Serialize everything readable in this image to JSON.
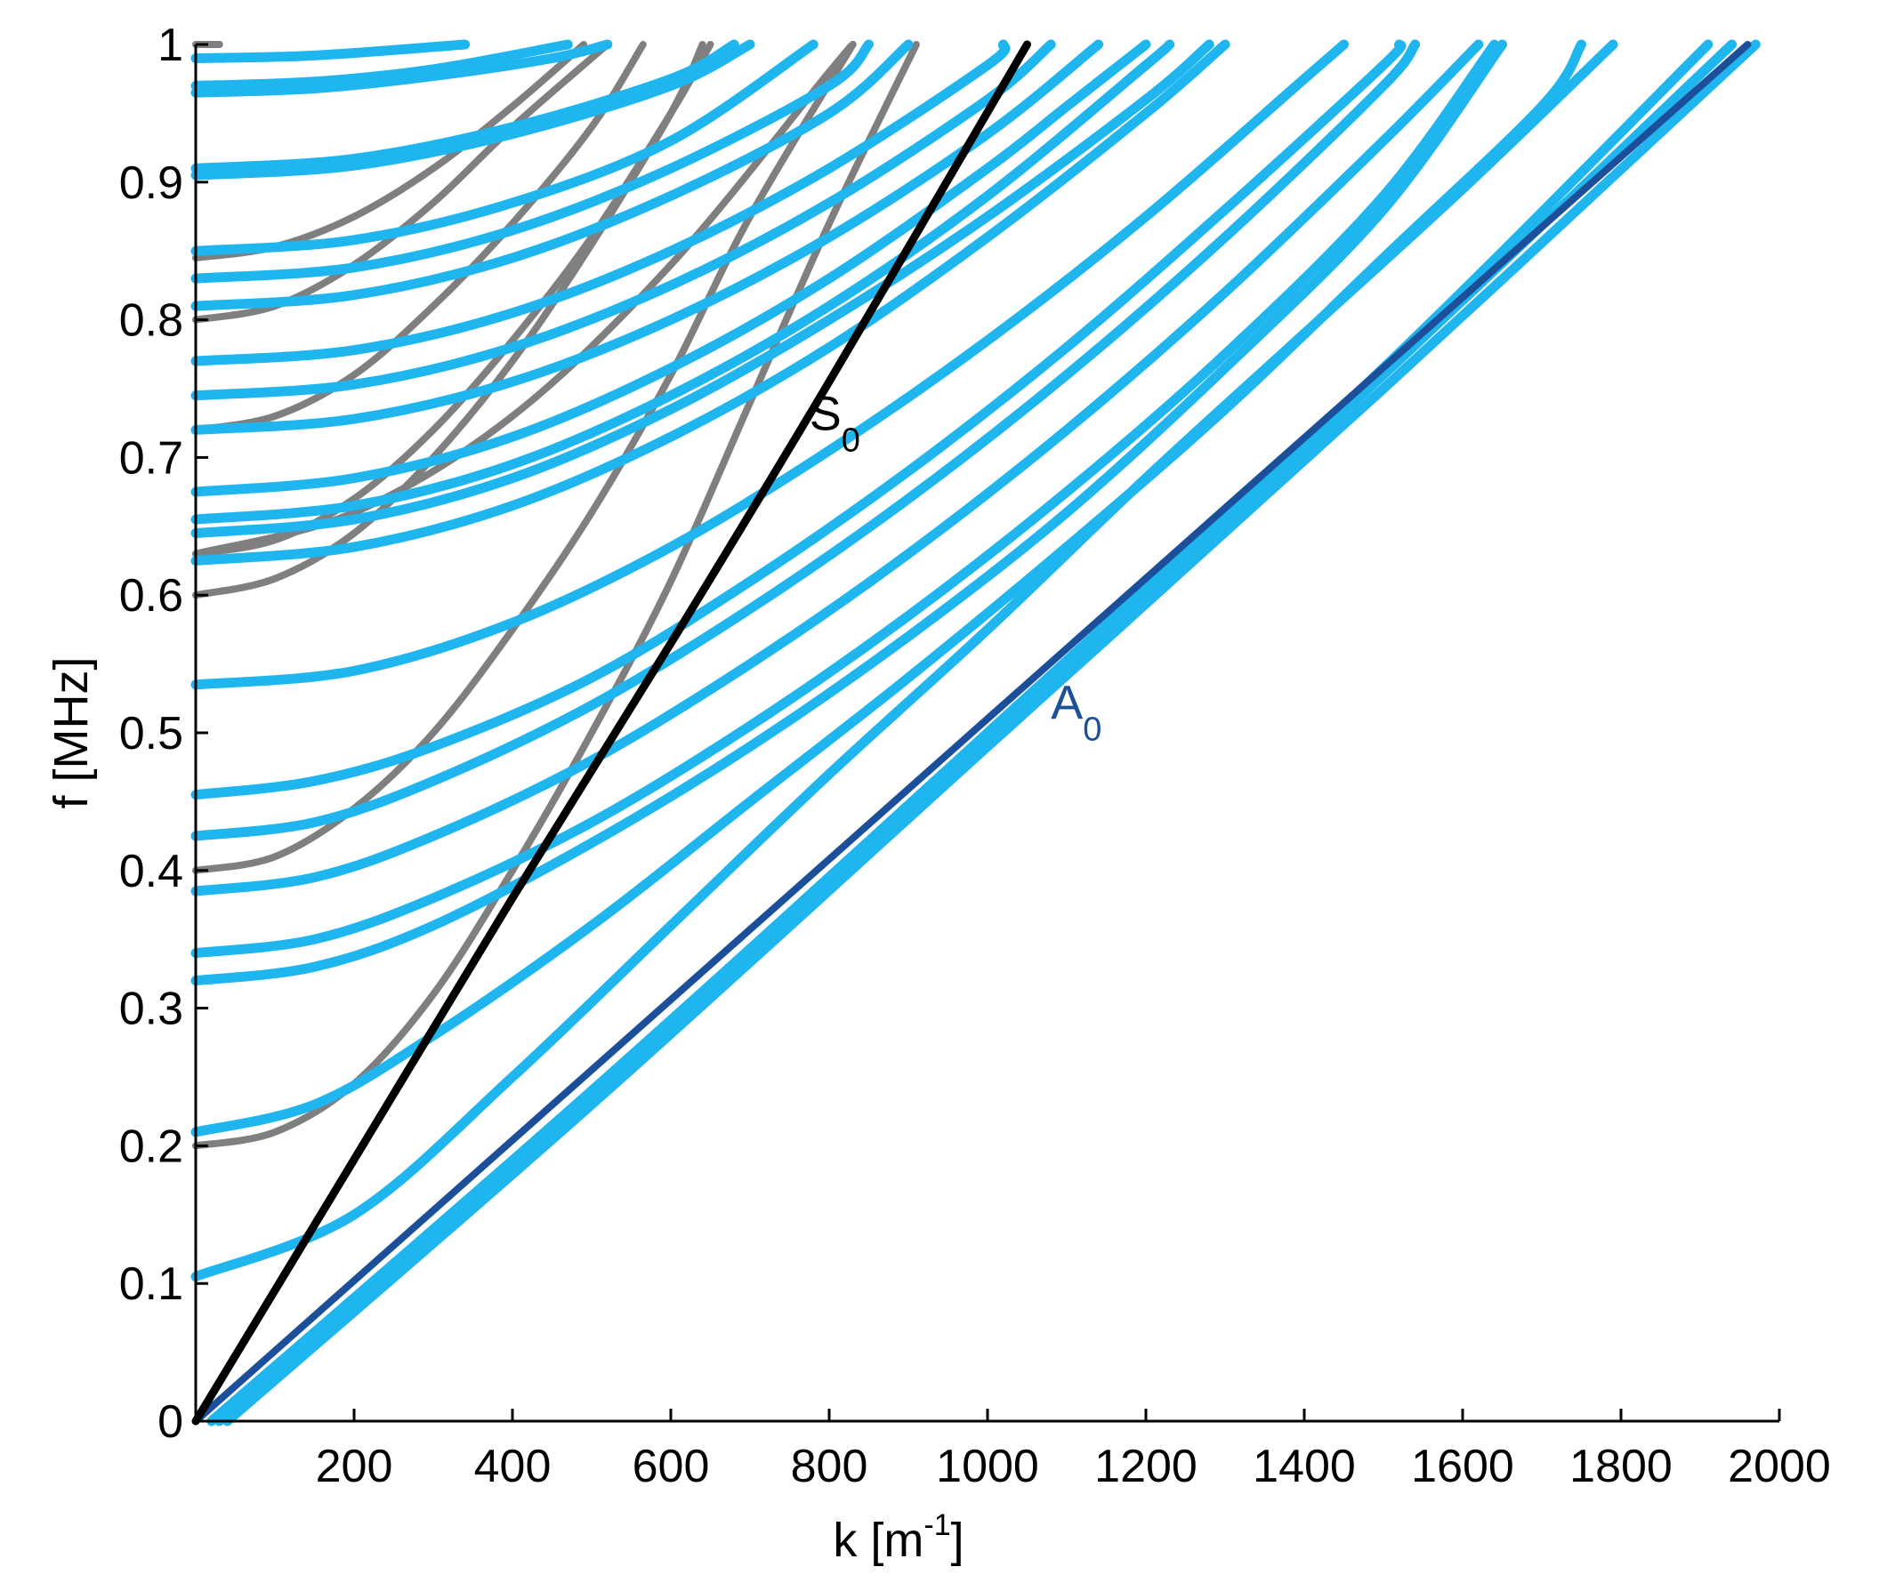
{
  "chart_data": {
    "type": "line",
    "xlabel": "k [m",
    "xlabel_sup": "-1",
    "xlabel_suffix": "]",
    "ylabel": "f [MHz]",
    "xlim": [
      0,
      2000
    ],
    "ylim": [
      0,
      1
    ],
    "x_ticks": [
      200,
      400,
      600,
      800,
      1000,
      1200,
      1400,
      1600,
      1800,
      2000
    ],
    "y_ticks": [
      0,
      0.1,
      0.2,
      0.3,
      0.4,
      0.5,
      0.6,
      0.7,
      0.8,
      0.9,
      1
    ],
    "x_tick_labels": [
      "200",
      "400",
      "600",
      "800",
      "1000",
      "1200",
      "1400",
      "1600",
      "1800",
      "2000"
    ],
    "y_tick_labels": [
      "0",
      "0.1",
      "0.2",
      "0.3",
      "0.4",
      "0.5",
      "0.6",
      "0.7",
      "0.8",
      "0.9",
      "1"
    ],
    "grid": false,
    "colors": {
      "light": "#1fb5ef",
      "gray": "#7f7f7f",
      "S0": "#000000",
      "A0": "#1c4f99"
    },
    "annotations": [
      {
        "id": "s0-label",
        "text": "S",
        "sub": "0",
        "k": 775,
        "f": 0.72,
        "color": "#000000"
      },
      {
        "id": "a0-label",
        "text": "A",
        "sub": "0",
        "k": 1080,
        "f": 0.51,
        "color": "#1c4f99"
      }
    ],
    "series": [
      {
        "group": "S0",
        "points": [
          [
            0,
            0
          ],
          [
            200,
            0.19
          ],
          [
            400,
            0.38
          ],
          [
            600,
            0.565
          ],
          [
            800,
            0.755
          ],
          [
            1050,
            1.0
          ]
        ]
      },
      {
        "group": "A0",
        "points": [
          [
            0,
            0
          ],
          [
            1960,
            1.0
          ]
        ]
      },
      {
        "group": "gray",
        "points": [
          [
            0,
            0.2
          ],
          [
            100,
            0.21
          ],
          [
            200,
            0.245
          ],
          [
            300,
            0.31
          ],
          [
            400,
            0.4
          ],
          [
            500,
            0.5
          ],
          [
            600,
            0.61
          ],
          [
            700,
            0.74
          ],
          [
            800,
            0.87
          ],
          [
            910,
            1.0
          ]
        ]
      },
      {
        "group": "gray",
        "points": [
          [
            0,
            0.4
          ],
          [
            100,
            0.41
          ],
          [
            200,
            0.445
          ],
          [
            300,
            0.5
          ],
          [
            400,
            0.575
          ],
          [
            500,
            0.66
          ],
          [
            600,
            0.76
          ],
          [
            700,
            0.875
          ],
          [
            830,
            1.0
          ]
        ]
      },
      {
        "group": "gray",
        "points": [
          [
            0,
            0.6
          ],
          [
            100,
            0.612
          ],
          [
            200,
            0.645
          ],
          [
            300,
            0.7
          ],
          [
            400,
            0.77
          ],
          [
            500,
            0.855
          ],
          [
            600,
            0.95
          ],
          [
            640,
            1.0
          ]
        ]
      },
      {
        "group": "gray",
        "points": [
          [
            0,
            0.63
          ],
          [
            100,
            0.64
          ],
          [
            200,
            0.67
          ],
          [
            300,
            0.72
          ],
          [
            400,
            0.785
          ],
          [
            500,
            0.86
          ],
          [
            600,
            0.95
          ],
          [
            650,
            1.0
          ]
        ]
      },
      {
        "group": "gray",
        "points": [
          [
            0,
            0.72
          ],
          [
            100,
            0.73
          ],
          [
            200,
            0.76
          ],
          [
            300,
            0.81
          ],
          [
            400,
            0.87
          ],
          [
            500,
            0.94
          ],
          [
            565,
            1.0
          ]
        ]
      },
      {
        "group": "gray",
        "points": [
          [
            0,
            0.8
          ],
          [
            100,
            0.81
          ],
          [
            200,
            0.84
          ],
          [
            300,
            0.885
          ],
          [
            400,
            0.94
          ],
          [
            520,
            1.0
          ]
        ]
      },
      {
        "group": "gray",
        "points": [
          [
            0,
            0.845
          ],
          [
            100,
            0.853
          ],
          [
            200,
            0.875
          ],
          [
            300,
            0.91
          ],
          [
            400,
            0.955
          ],
          [
            490,
            1.0
          ]
        ]
      },
      {
        "group": "gray",
        "points": [
          [
            0,
            1.0
          ],
          [
            30,
            1.0
          ]
        ]
      },
      {
        "group": "gray",
        "points": [
          [
            0,
            0.63
          ],
          [
            200,
            0.66
          ],
          [
            400,
            0.73
          ],
          [
            600,
            0.84
          ],
          [
            800,
            0.98
          ],
          [
            830,
            1.0
          ]
        ]
      },
      {
        "group": "light",
        "points": [
          [
            0,
            0.105
          ],
          [
            200,
            0.15
          ],
          [
            400,
            0.25
          ],
          [
            600,
            0.36
          ],
          [
            800,
            0.47
          ],
          [
            1000,
            0.575
          ],
          [
            1200,
            0.685
          ],
          [
            1400,
            0.79
          ],
          [
            1600,
            0.895
          ],
          [
            1790,
            1.0
          ]
        ]
      },
      {
        "group": "light",
        "points": [
          [
            0,
            0.21
          ],
          [
            150,
            0.23
          ],
          [
            300,
            0.28
          ],
          [
            500,
            0.36
          ],
          [
            700,
            0.45
          ],
          [
            900,
            0.54
          ],
          [
            1100,
            0.635
          ],
          [
            1300,
            0.735
          ],
          [
            1500,
            0.845
          ],
          [
            1700,
            0.955
          ],
          [
            1750,
            1.0
          ]
        ]
      },
      {
        "group": "light",
        "points": [
          [
            0,
            0.32
          ],
          [
            150,
            0.33
          ],
          [
            300,
            0.36
          ],
          [
            500,
            0.42
          ],
          [
            700,
            0.49
          ],
          [
            900,
            0.57
          ],
          [
            1100,
            0.66
          ],
          [
            1300,
            0.765
          ],
          [
            1500,
            0.88
          ],
          [
            1650,
            1.0
          ]
        ]
      },
      {
        "group": "light",
        "points": [
          [
            0,
            0.34
          ],
          [
            150,
            0.35
          ],
          [
            300,
            0.38
          ],
          [
            500,
            0.435
          ],
          [
            700,
            0.505
          ],
          [
            900,
            0.585
          ],
          [
            1100,
            0.675
          ],
          [
            1300,
            0.775
          ],
          [
            1500,
            0.89
          ],
          [
            1640,
            1.0
          ]
        ]
      },
      {
        "group": "light",
        "points": [
          [
            0,
            0.385
          ],
          [
            150,
            0.395
          ],
          [
            300,
            0.425
          ],
          [
            500,
            0.48
          ],
          [
            700,
            0.55
          ],
          [
            900,
            0.63
          ],
          [
            1100,
            0.72
          ],
          [
            1300,
            0.82
          ],
          [
            1500,
            0.93
          ],
          [
            1620,
            1.0
          ]
        ]
      },
      {
        "group": "light",
        "points": [
          [
            0,
            0.425
          ],
          [
            150,
            0.435
          ],
          [
            300,
            0.465
          ],
          [
            500,
            0.52
          ],
          [
            700,
            0.59
          ],
          [
            900,
            0.67
          ],
          [
            1100,
            0.76
          ],
          [
            1300,
            0.86
          ],
          [
            1500,
            0.97
          ],
          [
            1540,
            1.0
          ]
        ]
      },
      {
        "group": "light",
        "points": [
          [
            0,
            0.455
          ],
          [
            150,
            0.465
          ],
          [
            300,
            0.49
          ],
          [
            500,
            0.54
          ],
          [
            700,
            0.61
          ],
          [
            900,
            0.69
          ],
          [
            1100,
            0.78
          ],
          [
            1300,
            0.88
          ],
          [
            1500,
            0.985
          ],
          [
            1520,
            1.0
          ]
        ]
      },
      {
        "group": "light",
        "points": [
          [
            0,
            0.535
          ],
          [
            200,
            0.545
          ],
          [
            400,
            0.58
          ],
          [
            600,
            0.635
          ],
          [
            800,
            0.705
          ],
          [
            1000,
            0.785
          ],
          [
            1200,
            0.875
          ],
          [
            1400,
            0.975
          ],
          [
            1450,
            1.0
          ]
        ]
      },
      {
        "group": "light",
        "points": [
          [
            0,
            0.625
          ],
          [
            200,
            0.635
          ],
          [
            400,
            0.665
          ],
          [
            600,
            0.715
          ],
          [
            800,
            0.78
          ],
          [
            1000,
            0.86
          ],
          [
            1200,
            0.95
          ],
          [
            1300,
            1.0
          ]
        ]
      },
      {
        "group": "light",
        "points": [
          [
            0,
            0.645
          ],
          [
            200,
            0.655
          ],
          [
            400,
            0.685
          ],
          [
            600,
            0.735
          ],
          [
            800,
            0.8
          ],
          [
            1000,
            0.875
          ],
          [
            1200,
            0.96
          ],
          [
            1280,
            1.0
          ]
        ]
      },
      {
        "group": "light",
        "points": [
          [
            0,
            0.655
          ],
          [
            200,
            0.665
          ],
          [
            400,
            0.695
          ],
          [
            600,
            0.745
          ],
          [
            800,
            0.81
          ],
          [
            1000,
            0.89
          ],
          [
            1200,
            0.985
          ],
          [
            1230,
            1.0
          ]
        ]
      },
      {
        "group": "light",
        "points": [
          [
            0,
            0.675
          ],
          [
            200,
            0.685
          ],
          [
            400,
            0.715
          ],
          [
            600,
            0.765
          ],
          [
            800,
            0.83
          ],
          [
            1000,
            0.91
          ],
          [
            1100,
            0.955
          ],
          [
            1200,
            1.0
          ]
        ]
      },
      {
        "group": "light",
        "points": [
          [
            0,
            0.72
          ],
          [
            200,
            0.728
          ],
          [
            400,
            0.755
          ],
          [
            600,
            0.8
          ],
          [
            800,
            0.86
          ],
          [
            1000,
            0.935
          ],
          [
            1140,
            1.0
          ]
        ]
      },
      {
        "group": "light",
        "points": [
          [
            0,
            0.745
          ],
          [
            200,
            0.753
          ],
          [
            400,
            0.78
          ],
          [
            600,
            0.825
          ],
          [
            800,
            0.885
          ],
          [
            1000,
            0.96
          ],
          [
            1080,
            1.0
          ]
        ]
      },
      {
        "group": "light",
        "points": [
          [
            0,
            0.77
          ],
          [
            200,
            0.778
          ],
          [
            400,
            0.805
          ],
          [
            600,
            0.85
          ],
          [
            800,
            0.91
          ],
          [
            1000,
            0.985
          ],
          [
            1020,
            1.0
          ]
        ]
      },
      {
        "group": "light",
        "points": [
          [
            0,
            0.81
          ],
          [
            200,
            0.818
          ],
          [
            400,
            0.845
          ],
          [
            600,
            0.89
          ],
          [
            800,
            0.95
          ],
          [
            900,
            1.0
          ]
        ]
      },
      {
        "group": "light",
        "points": [
          [
            0,
            0.83
          ],
          [
            200,
            0.838
          ],
          [
            400,
            0.865
          ],
          [
            600,
            0.91
          ],
          [
            800,
            0.97
          ],
          [
            850,
            1.0
          ]
        ]
      },
      {
        "group": "light",
        "points": [
          [
            0,
            0.85
          ],
          [
            200,
            0.858
          ],
          [
            400,
            0.885
          ],
          [
            600,
            0.93
          ],
          [
            780,
            1.0
          ]
        ]
      },
      {
        "group": "light",
        "points": [
          [
            0,
            0.905
          ],
          [
            200,
            0.912
          ],
          [
            400,
            0.935
          ],
          [
            600,
            0.97
          ],
          [
            700,
            1.0
          ]
        ]
      },
      {
        "group": "light",
        "points": [
          [
            0,
            0.91
          ],
          [
            200,
            0.917
          ],
          [
            400,
            0.94
          ],
          [
            600,
            0.975
          ],
          [
            680,
            1.0
          ]
        ]
      },
      {
        "group": "light",
        "points": [
          [
            0,
            0.965
          ],
          [
            150,
            0.968
          ],
          [
            300,
            0.977
          ],
          [
            450,
            0.99
          ],
          [
            520,
            1.0
          ]
        ]
      },
      {
        "group": "light",
        "points": [
          [
            0,
            0.97
          ],
          [
            150,
            0.973
          ],
          [
            300,
            0.982
          ],
          [
            470,
            1.0
          ]
        ]
      },
      {
        "group": "light",
        "points": [
          [
            0,
            0.99
          ],
          [
            150,
            0.992
          ],
          [
            340,
            1.0
          ]
        ]
      },
      {
        "group": "light",
        "points": [
          [
            40,
            0.0
          ],
          [
            500,
            0.23
          ],
          [
            1000,
            0.49
          ],
          [
            1500,
            0.75
          ],
          [
            1970,
            1.0
          ]
        ]
      },
      {
        "group": "light",
        "points": [
          [
            30,
            0.0
          ],
          [
            500,
            0.235
          ],
          [
            1000,
            0.495
          ],
          [
            1500,
            0.76
          ],
          [
            1940,
            1.0
          ]
        ]
      },
      {
        "group": "light",
        "points": [
          [
            20,
            0.0
          ],
          [
            500,
            0.24
          ],
          [
            1000,
            0.5
          ],
          [
            1500,
            0.765
          ],
          [
            1910,
            1.0
          ]
        ]
      }
    ]
  }
}
